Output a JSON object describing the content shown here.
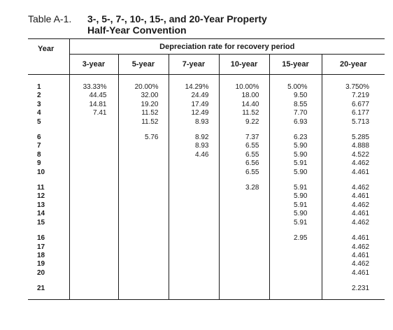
{
  "caption": "Table A-1.",
  "title_line1": "3-, 5-, 7-, 10-, 15-, and 20-Year Property",
  "title_line2": "Half-Year Convention",
  "year_header": "Year",
  "group_header": "Depreciation rate for recovery period",
  "columns": [
    "3-year",
    "5-year",
    "7-year",
    "10-year",
    "15-year",
    "20-year"
  ],
  "rows": [
    {
      "year": "1",
      "values": [
        "33.33%",
        "20.00%",
        "14.29%",
        "10.00%",
        "5.00%",
        "3.750%"
      ]
    },
    {
      "year": "2",
      "values": [
        "44.45",
        "32.00",
        "24.49",
        "18.00",
        "9.50",
        "7.219"
      ]
    },
    {
      "year": "3",
      "values": [
        "14.81",
        "19.20",
        "17.49",
        "14.40",
        "8.55",
        "6.677"
      ]
    },
    {
      "year": "4",
      "values": [
        "7.41",
        "11.52",
        "12.49",
        "11.52",
        "7.70",
        "6.177"
      ]
    },
    {
      "year": "5",
      "values": [
        "",
        "11.52",
        "8.93",
        "9.22",
        "6.93",
        "5.713"
      ]
    },
    {
      "year": "6",
      "values": [
        "",
        "5.76",
        "8.92",
        "7.37",
        "6.23",
        "5.285"
      ]
    },
    {
      "year": "7",
      "values": [
        "",
        "",
        "8.93",
        "6.55",
        "5.90",
        "4.888"
      ]
    },
    {
      "year": "8",
      "values": [
        "",
        "",
        "4.46",
        "6.55",
        "5.90",
        "4.522"
      ]
    },
    {
      "year": "9",
      "values": [
        "",
        "",
        "",
        "6.56",
        "5.91",
        "4.462"
      ]
    },
    {
      "year": "10",
      "values": [
        "",
        "",
        "",
        "6.55",
        "5.90",
        "4.461"
      ]
    },
    {
      "year": "11",
      "values": [
        "",
        "",
        "",
        "3.28",
        "5.91",
        "4.462"
      ]
    },
    {
      "year": "12",
      "values": [
        "",
        "",
        "",
        "",
        "5.90",
        "4.461"
      ]
    },
    {
      "year": "13",
      "values": [
        "",
        "",
        "",
        "",
        "5.91",
        "4.462"
      ]
    },
    {
      "year": "14",
      "values": [
        "",
        "",
        "",
        "",
        "5.90",
        "4.461"
      ]
    },
    {
      "year": "15",
      "values": [
        "",
        "",
        "",
        "",
        "5.91",
        "4.462"
      ]
    },
    {
      "year": "16",
      "values": [
        "",
        "",
        "",
        "",
        "2.95",
        "4.461"
      ]
    },
    {
      "year": "17",
      "values": [
        "",
        "",
        "",
        "",
        "",
        "4.462"
      ]
    },
    {
      "year": "18",
      "values": [
        "",
        "",
        "",
        "",
        "",
        "4.461"
      ]
    },
    {
      "year": "19",
      "values": [
        "",
        "",
        "",
        "",
        "",
        "4.462"
      ]
    },
    {
      "year": "20",
      "values": [
        "",
        "",
        "",
        "",
        "",
        "4.461"
      ]
    },
    {
      "year": "21",
      "values": [
        "",
        "",
        "",
        "",
        "",
        "2.231"
      ]
    }
  ]
}
